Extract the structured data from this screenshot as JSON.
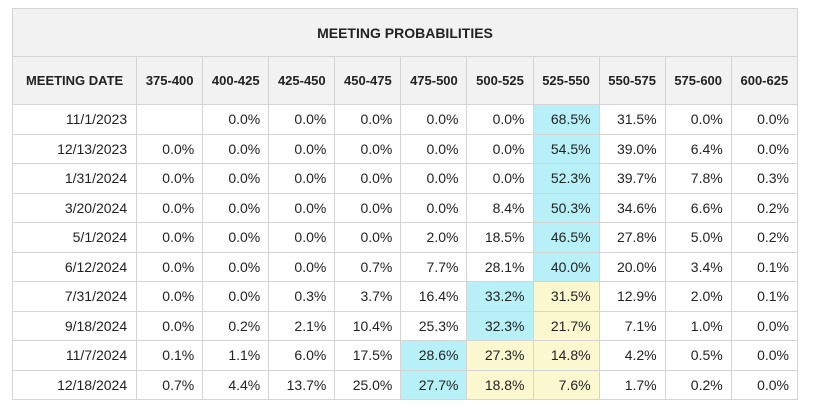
{
  "title": "MEETING PROBABILITIES",
  "columns": [
    "MEETING DATE",
    "375-400",
    "400-425",
    "425-450",
    "450-475",
    "475-500",
    "500-525",
    "525-550",
    "550-575",
    "575-600",
    "600-625"
  ],
  "highlight_colors": {
    "mode": "#b7f1f7",
    "secondary": "#fbf8cf"
  },
  "rows": [
    {
      "date": "11/1/2023",
      "values": [
        "",
        "0.0%",
        "0.0%",
        "0.0%",
        "0.0%",
        "0.0%",
        "68.5%",
        "31.5%",
        "0.0%",
        "0.0%"
      ],
      "highlight": [
        "",
        "",
        "",
        "",
        "",
        "",
        "cyan",
        "",
        "",
        ""
      ]
    },
    {
      "date": "12/13/2023",
      "values": [
        "0.0%",
        "0.0%",
        "0.0%",
        "0.0%",
        "0.0%",
        "0.0%",
        "54.5%",
        "39.0%",
        "6.4%",
        "0.0%"
      ],
      "highlight": [
        "",
        "",
        "",
        "",
        "",
        "",
        "cyan",
        "",
        "",
        ""
      ]
    },
    {
      "date": "1/31/2024",
      "values": [
        "0.0%",
        "0.0%",
        "0.0%",
        "0.0%",
        "0.0%",
        "0.0%",
        "52.3%",
        "39.7%",
        "7.8%",
        "0.3%"
      ],
      "highlight": [
        "",
        "",
        "",
        "",
        "",
        "",
        "cyan",
        "",
        "",
        ""
      ]
    },
    {
      "date": "3/20/2024",
      "values": [
        "0.0%",
        "0.0%",
        "0.0%",
        "0.0%",
        "0.0%",
        "8.4%",
        "50.3%",
        "34.6%",
        "6.6%",
        "0.2%"
      ],
      "highlight": [
        "",
        "",
        "",
        "",
        "",
        "",
        "cyan",
        "",
        "",
        ""
      ]
    },
    {
      "date": "5/1/2024",
      "values": [
        "0.0%",
        "0.0%",
        "0.0%",
        "0.0%",
        "2.0%",
        "18.5%",
        "46.5%",
        "27.8%",
        "5.0%",
        "0.2%"
      ],
      "highlight": [
        "",
        "",
        "",
        "",
        "",
        "",
        "cyan",
        "",
        "",
        ""
      ]
    },
    {
      "date": "6/12/2024",
      "values": [
        "0.0%",
        "0.0%",
        "0.0%",
        "0.7%",
        "7.7%",
        "28.1%",
        "40.0%",
        "20.0%",
        "3.4%",
        "0.1%"
      ],
      "highlight": [
        "",
        "",
        "",
        "",
        "",
        "",
        "cyan",
        "",
        "",
        ""
      ]
    },
    {
      "date": "7/31/2024",
      "values": [
        "0.0%",
        "0.0%",
        "0.3%",
        "3.7%",
        "16.4%",
        "33.2%",
        "31.5%",
        "12.9%",
        "2.0%",
        "0.1%"
      ],
      "highlight": [
        "",
        "",
        "",
        "",
        "",
        "cyan",
        "yellow",
        "",
        "",
        ""
      ]
    },
    {
      "date": "9/18/2024",
      "values": [
        "0.0%",
        "0.2%",
        "2.1%",
        "10.4%",
        "25.3%",
        "32.3%",
        "21.7%",
        "7.1%",
        "1.0%",
        "0.0%"
      ],
      "highlight": [
        "",
        "",
        "",
        "",
        "",
        "cyan",
        "yellow",
        "",
        "",
        ""
      ]
    },
    {
      "date": "11/7/2024",
      "values": [
        "0.1%",
        "1.1%",
        "6.0%",
        "17.5%",
        "28.6%",
        "27.3%",
        "14.8%",
        "4.2%",
        "0.5%",
        "0.0%"
      ],
      "highlight": [
        "",
        "",
        "",
        "",
        "cyan",
        "yellow",
        "yellow",
        "",
        "",
        ""
      ]
    },
    {
      "date": "12/18/2024",
      "values": [
        "0.7%",
        "4.4%",
        "13.7%",
        "25.0%",
        "27.7%",
        "18.8%",
        "7.6%",
        "1.7%",
        "0.2%",
        "0.0%"
      ],
      "highlight": [
        "",
        "",
        "",
        "",
        "cyan",
        "yellow",
        "yellow",
        "",
        "",
        ""
      ]
    }
  ]
}
